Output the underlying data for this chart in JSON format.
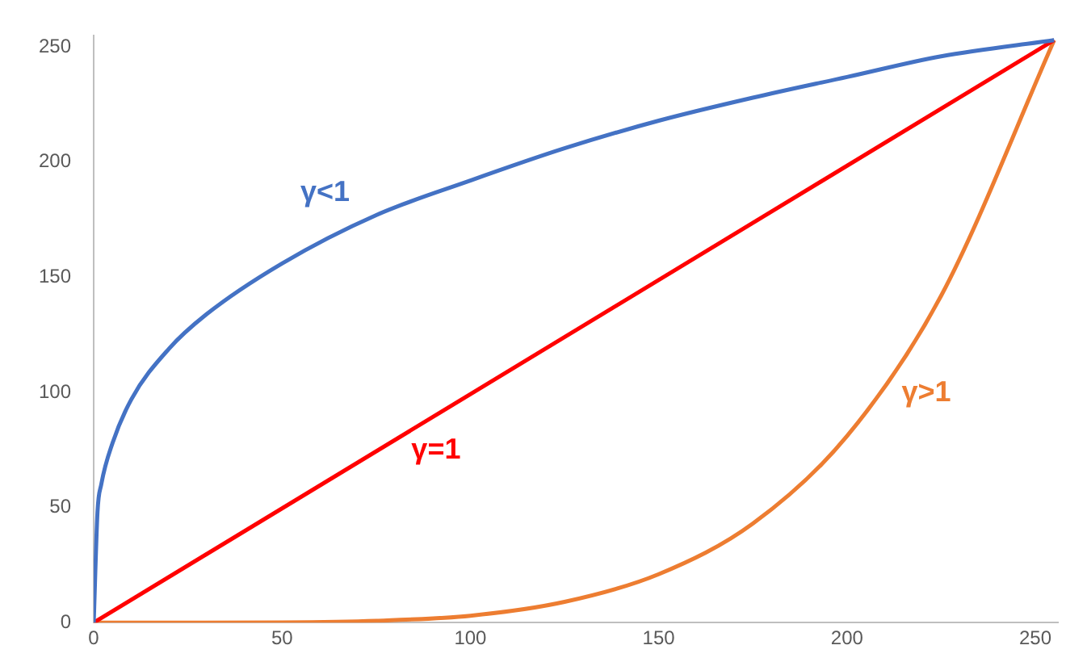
{
  "chart_data": {
    "type": "line",
    "xlim": [
      0,
      256
    ],
    "ylim": [
      0,
      255
    ],
    "xticks": [
      0,
      50,
      100,
      150,
      200,
      250
    ],
    "yticks": [
      0,
      50,
      100,
      150,
      200,
      250
    ],
    "grid": false,
    "legend": false,
    "marker": "none",
    "series": [
      {
        "name": "γ<1",
        "color": "#4472c4",
        "x": [
          0,
          1,
          2,
          5,
          10,
          20,
          30,
          50,
          75,
          100,
          125,
          150,
          175,
          200,
          225,
          255
        ],
        "values": [
          0,
          48,
          60,
          78,
          97,
          119,
          134,
          156,
          177,
          192,
          206,
          218,
          228,
          237,
          246,
          253
        ]
      },
      {
        "name": "γ=1",
        "color": "#ff0000",
        "x": [
          0,
          255
        ],
        "values": [
          0,
          253
        ]
      },
      {
        "name": "γ>1",
        "color": "#ed7d31",
        "x": [
          0,
          25,
          50,
          75,
          100,
          125,
          150,
          175,
          200,
          225,
          255
        ],
        "values": [
          0,
          0,
          0.1,
          0.8,
          3,
          9,
          21,
          43,
          81,
          142,
          253
        ]
      }
    ]
  }
}
